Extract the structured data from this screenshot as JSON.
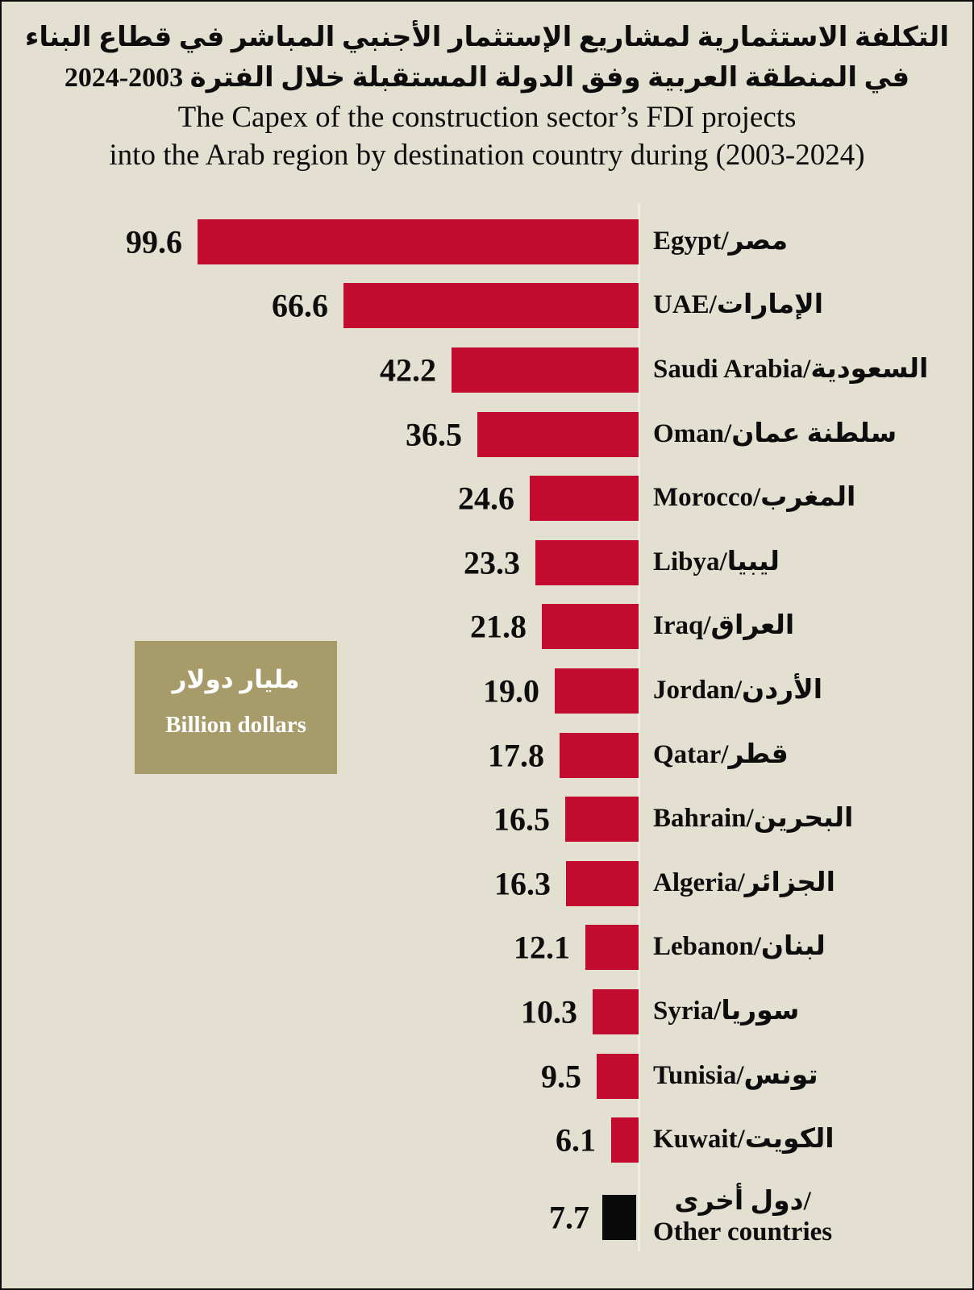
{
  "title": {
    "arabic_line1": "التكلفة الاستثمارية لمشاريع الإستثمار الأجنبي المباشر في قطاع البناء",
    "arabic_line2": "في المنطقة العربية وفق الدولة المستقبلة خلال الفترة 2003-2024",
    "english_line1": "The Capex of the construction sector’s FDI projects",
    "english_line2": "into the Arab region by destination country during (2003-2024)"
  },
  "legend": {
    "arabic": "مليار دولار",
    "english": "Billion dollars"
  },
  "colors": {
    "background": "#E3E0D2",
    "bar": "#C30B30",
    "bar_other": "#0A0A0A",
    "legend_box": "#A69B69",
    "baseline": "#F1EEE1",
    "text": "#0D0D0D",
    "legend_text": "#FFFFFF"
  },
  "chart_data": {
    "type": "bar",
    "orientation": "horizontal",
    "unit_arabic": "مليار دولار",
    "unit_english": "Billion dollars",
    "legend_position": "middle-left",
    "value_labels_shown": true,
    "grid": false,
    "categories": [
      "Egypt/مصر",
      "UAE/الإمارات",
      "Saudi Arabia/السعودية",
      "Oman/سلطنة عمان",
      "Morocco/المغرب",
      "Libya/ليبيا",
      "Iraq/العراق",
      "Jordan/الأردن",
      "Qatar/قطر",
      "Bahrain/البحرين",
      "Algeria/الجزائر",
      "Lebanon/لبنان",
      "Syria/سوريا",
      "Tunisia/تونس",
      "Kuwait/الكويت",
      "دول أخرى/Other countries"
    ],
    "values": [
      99.6,
      66.6,
      42.2,
      36.5,
      24.6,
      23.3,
      21.8,
      19.0,
      17.8,
      16.5,
      16.3,
      12.1,
      10.3,
      9.5,
      6.1,
      7.7
    ],
    "items": [
      {
        "label": "Egypt/مصر",
        "value": 99.6,
        "value_label": "99.6"
      },
      {
        "label": "UAE/الإمارات",
        "value": 66.6,
        "value_label": "66.6"
      },
      {
        "label": "Saudi Arabia/السعودية",
        "value": 42.2,
        "value_label": "42.2"
      },
      {
        "label": "Oman/سلطنة عمان",
        "value": 36.5,
        "value_label": "36.5"
      },
      {
        "label": "Morocco/المغرب",
        "value": 24.6,
        "value_label": "24.6"
      },
      {
        "label": "Libya/ليبيا",
        "value": 23.3,
        "value_label": "23.3"
      },
      {
        "label": "Iraq/العراق",
        "value": 21.8,
        "value_label": "21.8"
      },
      {
        "label": "Jordan/الأردن",
        "value": 19.0,
        "value_label": "19.0"
      },
      {
        "label": "Qatar/قطر",
        "value": 17.8,
        "value_label": "17.8"
      },
      {
        "label": "Bahrain/البحرين",
        "value": 16.5,
        "value_label": "16.5"
      },
      {
        "label": "Algeria/الجزائر",
        "value": 16.3,
        "value_label": "16.3"
      },
      {
        "label": "Lebanon/لبنان",
        "value": 12.1,
        "value_label": "12.1"
      },
      {
        "label": "Syria/سوريا",
        "value": 10.3,
        "value_label": "10.3"
      },
      {
        "label": "Tunisia/تونس",
        "value": 9.5,
        "value_label": "9.5"
      },
      {
        "label": "Kuwait/الكويت",
        "value": 6.1,
        "value_label": "6.1"
      },
      {
        "label": "دول أخرى/\nOther countries",
        "value": 7.7,
        "value_label": "7.7",
        "other": true
      }
    ]
  }
}
